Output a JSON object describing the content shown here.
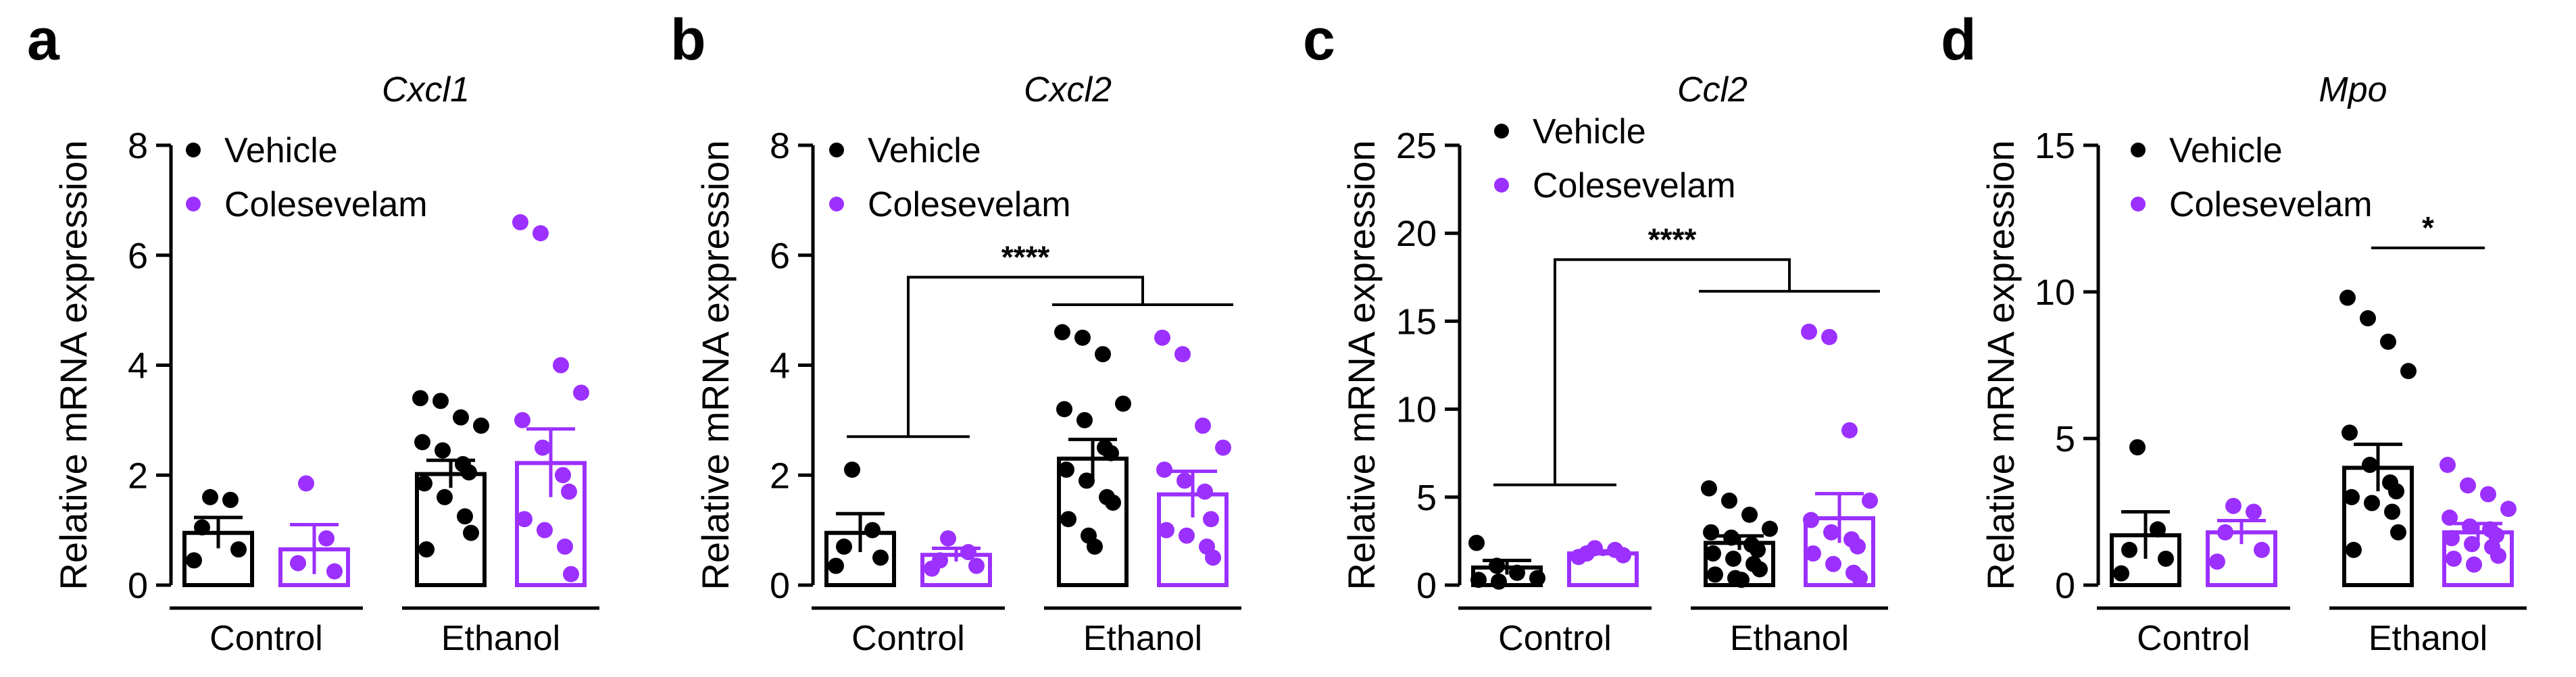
{
  "colors": {
    "vehicle": "#000000",
    "colesevelam": "#9B30FF"
  },
  "chart_data": [
    {
      "type": "bar",
      "panel_label": "a",
      "title": "Cxcl1",
      "ylabel": "Relative mRNA expression",
      "ylim": [
        0,
        8
      ],
      "yticks": [
        "0",
        "2",
        "4",
        "6",
        "8"
      ],
      "legend": [
        "Vehicle",
        "Colesevelam"
      ],
      "groups": [
        "Control",
        "Ethanol"
      ],
      "series": [
        {
          "name": "Control Vehicle",
          "mean": 0.95,
          "sem": 0.28,
          "color": "#000000",
          "points": [
            1.6,
            1.55,
            1.05,
            0.65,
            0.45
          ]
        },
        {
          "name": "Control Colesevelam",
          "mean": 0.65,
          "sem": 0.45,
          "color": "#9B30FF",
          "points": [
            1.85,
            0.85,
            0.4,
            0.25
          ]
        },
        {
          "name": "Ethanol Vehicle",
          "mean": 2.02,
          "sem": 0.25,
          "color": "#000000",
          "points": [
            3.4,
            3.35,
            3.05,
            2.9,
            2.6,
            2.45,
            2.2,
            2.05,
            1.85,
            1.6,
            1.25,
            0.95,
            0.65
          ]
        },
        {
          "name": "Ethanol Colesevelam",
          "mean": 2.22,
          "sem": 0.62,
          "color": "#9B30FF",
          "points": [
            6.6,
            6.4,
            4.0,
            3.5,
            3.0,
            2.5,
            2.0,
            1.7,
            1.2,
            1.0,
            0.7,
            0.2
          ]
        }
      ],
      "annotations": []
    },
    {
      "type": "bar",
      "panel_label": "b",
      "title": "Cxcl2",
      "ylabel": "Relative mRNA expression",
      "ylim": [
        0,
        8
      ],
      "yticks": [
        "0",
        "2",
        "4",
        "6",
        "8"
      ],
      "legend": [
        "Vehicle",
        "Colesevelam"
      ],
      "groups": [
        "Control",
        "Ethanol"
      ],
      "series": [
        {
          "name": "Control Vehicle",
          "mean": 0.95,
          "sem": 0.35,
          "color": "#000000",
          "points": [
            2.1,
            1.0,
            0.7,
            0.5,
            0.35
          ]
        },
        {
          "name": "Control Colesevelam",
          "mean": 0.55,
          "sem": 0.12,
          "color": "#9B30FF",
          "points": [
            0.85,
            0.6,
            0.45,
            0.35,
            0.3
          ]
        },
        {
          "name": "Ethanol Vehicle",
          "mean": 2.3,
          "sem": 0.35,
          "color": "#000000",
          "points": [
            4.6,
            4.5,
            4.2,
            3.3,
            3.2,
            3.0,
            2.5,
            2.4,
            2.1,
            1.9,
            1.6,
            1.5,
            1.2,
            0.9,
            0.7
          ]
        },
        {
          "name": "Ethanol Colesevelam",
          "mean": 1.65,
          "sem": 0.42,
          "color": "#9B30FF",
          "points": [
            4.5,
            4.2,
            2.9,
            2.5,
            2.1,
            1.9,
            1.7,
            1.2,
            1.0,
            0.9,
            0.7,
            0.5
          ]
        }
      ],
      "annotations": [
        {
          "text": "****",
          "type": "group-bracket",
          "y_low": 2.7,
          "y_groups": 5.1,
          "y_top": 5.6
        }
      ]
    },
    {
      "type": "bar",
      "panel_label": "c",
      "title": "Ccl2",
      "ylabel": "Relative mRNA expression",
      "ylim": [
        0,
        25
      ],
      "yticks": [
        "0",
        "5",
        "10",
        "15",
        "20",
        "25"
      ],
      "legend": [
        "Vehicle",
        "Colesevelam"
      ],
      "groups": [
        "Control",
        "Ethanol"
      ],
      "series": [
        {
          "name": "Control Vehicle",
          "mean": 1.0,
          "sem": 0.4,
          "color": "#000000",
          "points": [
            2.4,
            1.1,
            0.7,
            0.4,
            0.3,
            0.2
          ]
        },
        {
          "name": "Control Colesevelam",
          "mean": 1.8,
          "sem": 0.15,
          "color": "#9B30FF",
          "points": [
            2.1,
            2.0,
            1.8,
            1.7,
            1.6
          ]
        },
        {
          "name": "Ethanol Vehicle",
          "mean": 2.4,
          "sem": 0.4,
          "color": "#000000",
          "points": [
            5.5,
            4.8,
            4.0,
            3.2,
            3.0,
            2.7,
            2.3,
            2.0,
            1.8,
            1.5,
            1.2,
            0.9,
            0.6,
            0.4,
            0.3
          ]
        },
        {
          "name": "Ethanol Colesevelam",
          "mean": 3.8,
          "sem": 1.4,
          "color": "#9B30FF",
          "points": [
            14.4,
            14.1,
            8.8,
            4.8,
            3.7,
            3.0,
            2.6,
            2.2,
            1.8,
            1.2,
            0.7,
            0.4
          ]
        }
      ],
      "annotations": [
        {
          "text": "****",
          "type": "group-bracket",
          "y_low": 5.7,
          "y_groups": 16.7,
          "y_top": 18.5
        }
      ]
    },
    {
      "type": "bar",
      "panel_label": "d",
      "title": "Mpo",
      "ylabel": "Relative mRNA expression",
      "ylim": [
        0,
        15
      ],
      "yticks": [
        "0",
        "5",
        "10",
        "15"
      ],
      "legend": [
        "Vehicle",
        "Colesevelam"
      ],
      "groups": [
        "Control",
        "Ethanol"
      ],
      "series": [
        {
          "name": "Control Vehicle",
          "mean": 1.7,
          "sem": 0.8,
          "color": "#000000",
          "points": [
            4.7,
            1.9,
            1.2,
            0.9,
            0.4
          ]
        },
        {
          "name": "Control Colesevelam",
          "mean": 1.8,
          "sem": 0.4,
          "color": "#9B30FF",
          "points": [
            2.7,
            2.5,
            1.8,
            1.2,
            0.8
          ]
        },
        {
          "name": "Ethanol Vehicle",
          "mean": 4.0,
          "sem": 0.8,
          "color": "#000000",
          "points": [
            9.8,
            9.1,
            8.3,
            7.3,
            5.2,
            4.1,
            3.5,
            3.2,
            3.0,
            2.8,
            2.5,
            1.8,
            1.2
          ]
        },
        {
          "name": "Ethanol Colesevelam",
          "mean": 1.8,
          "sem": 0.3,
          "color": "#9B30FF",
          "points": [
            4.1,
            3.4,
            3.1,
            2.6,
            2.3,
            2.0,
            1.9,
            1.7,
            1.6,
            1.4,
            1.3,
            1.0,
            0.9,
            0.7
          ]
        }
      ],
      "annotations": [
        {
          "text": "*",
          "type": "pair",
          "between": [
            2,
            3
          ],
          "y": 11.5
        }
      ]
    }
  ]
}
